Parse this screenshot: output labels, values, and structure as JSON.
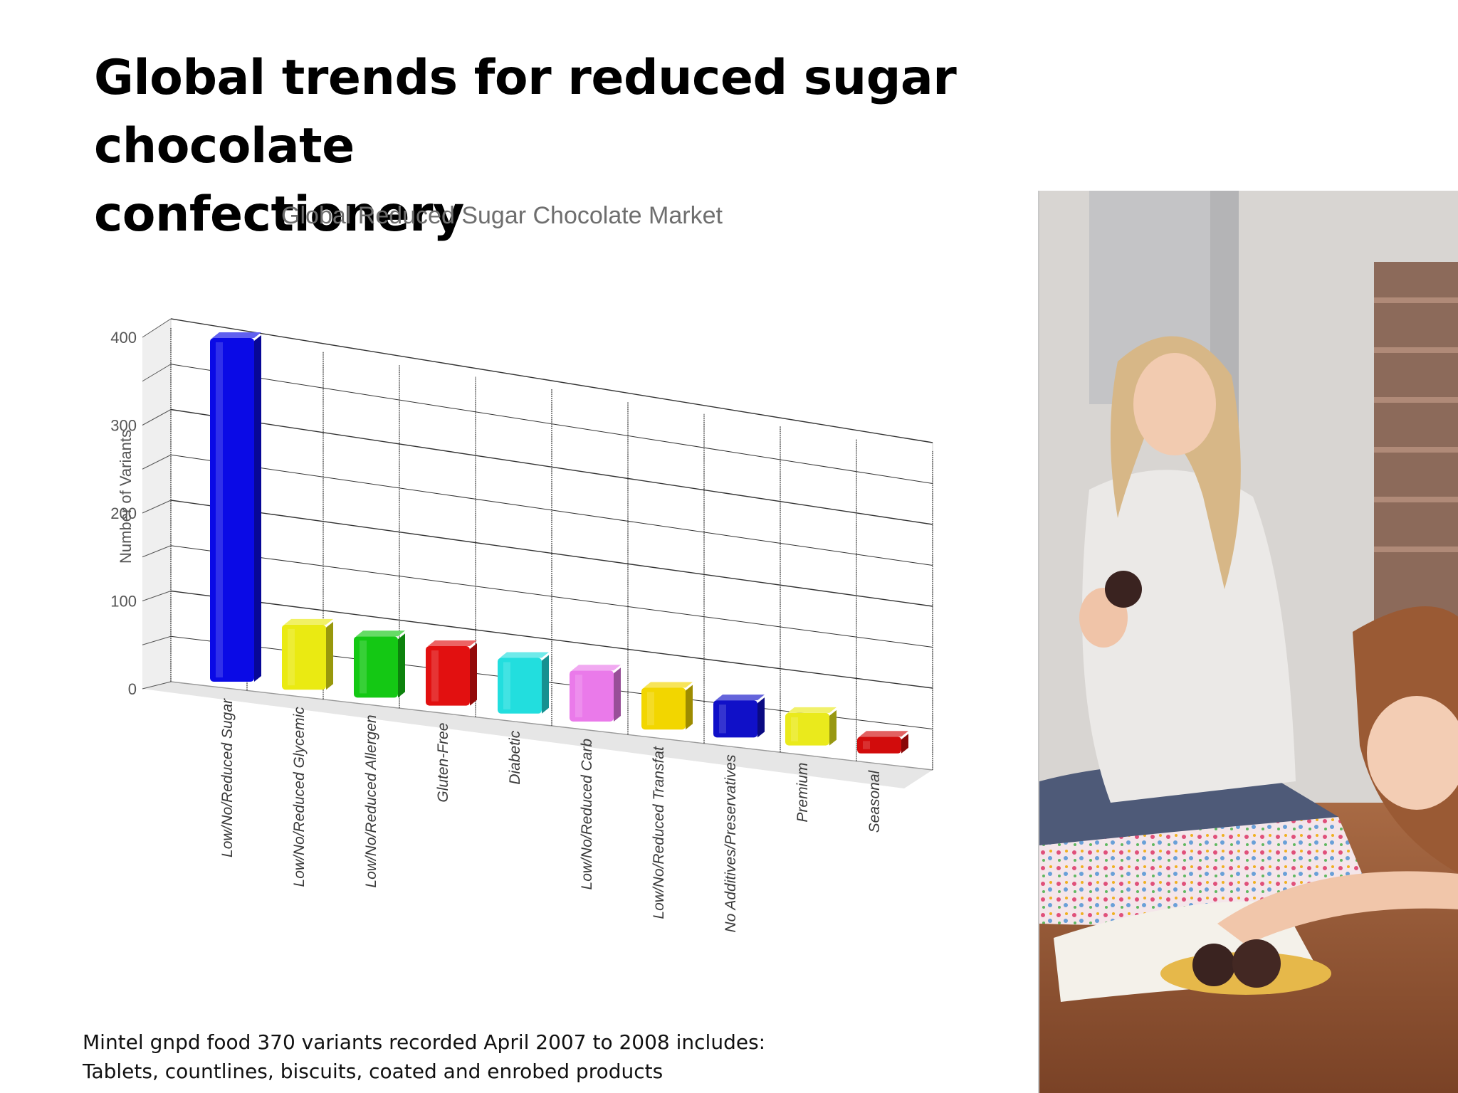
{
  "slide": {
    "title_line1": "Global trends for  reduced sugar chocolate",
    "title_line2": "confectionery",
    "caption_line1": "Mintel gnpd food 370 variants recorded April 2007 to 2008 includes:",
    "caption_line2": "Tablets, countlines, biscuits, coated and enrobed products"
  },
  "chart_data": {
    "type": "bar",
    "title": "Global Reduced Sugar Chocolate Market",
    "ylabel": "Number of Variants",
    "xlabel": "",
    "ylim": [
      0,
      400
    ],
    "yticks": [
      "0",
      "100",
      "200",
      "300",
      "400"
    ],
    "grid": true,
    "categories": [
      "Low/No/Reduced Sugar",
      "Low/No/Reduced Glycemic",
      "Low/No/Reduced Allergen",
      "Gluten-Free",
      "Diabetic",
      "Low/No/Reduced Carb",
      "Low/No/Reduced Transfat",
      "No Additives/Preservatives",
      "Premium",
      "Seasonal"
    ],
    "values": [
      370,
      70,
      66,
      64,
      60,
      55,
      45,
      40,
      35,
      18
    ],
    "colors": [
      "#0a0ae6",
      "#eaea12",
      "#14c814",
      "#e21010",
      "#22dede",
      "#ea7aea",
      "#f2d600",
      "#1010c8",
      "#eaea1c",
      "#d20c0c"
    ]
  },
  "photo": {
    "palette": {
      "wall": "#d9d6d3",
      "door": "#bcbcbe",
      "floor": "#9a5a38",
      "hoodie": "#e8e6e4",
      "hair": "#d9b98a",
      "skin": "#f2c9ae",
      "jeans": "#56607a",
      "pillow": "#f4e4e8",
      "plate": "#e6b84a",
      "cookie": "#3a2320"
    }
  }
}
